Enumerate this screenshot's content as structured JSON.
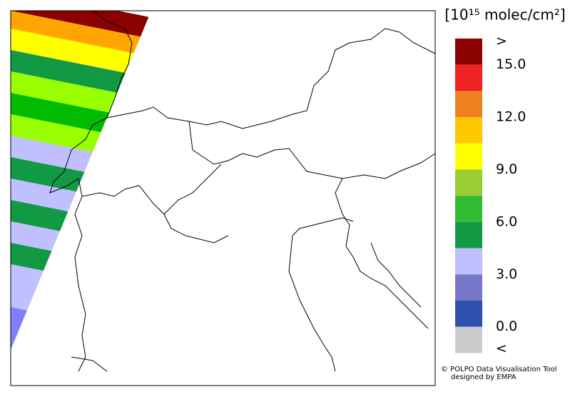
{
  "legend": {
    "title": "[10¹⁵ molec/cm²]",
    "colors": [
      "#8b0000",
      "#ee2222",
      "#f08020",
      "#ffc800",
      "#ffff00",
      "#9acd32",
      "#33bb33",
      "#119944",
      "#c0c0ff",
      "#7878c8",
      "#3050b0",
      "#cccccc"
    ],
    "labels": [
      ">",
      "15.0",
      "12.0",
      "9.0",
      "6.0",
      "3.0",
      "0.0",
      "<"
    ]
  },
  "credits": [
    "© POLPO Data Visualisation Tool",
    "designed by EMPA"
  ]
}
